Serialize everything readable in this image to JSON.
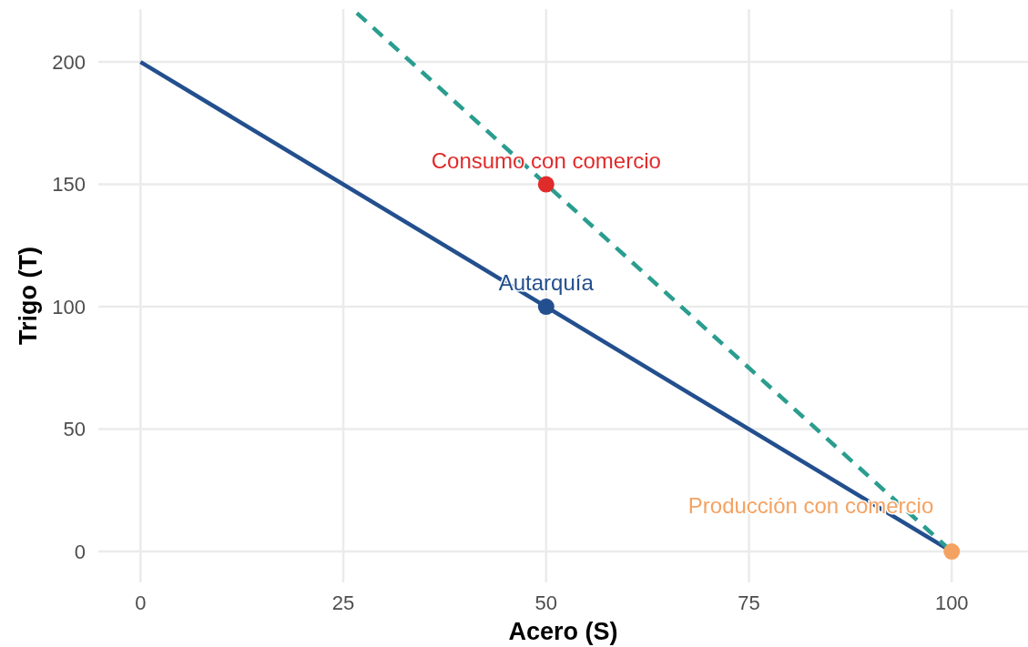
{
  "chart_data": {
    "type": "line",
    "xlabel": "Acero (S)",
    "ylabel": "Trigo (T)",
    "xlim": [
      -5.2,
      109.4
    ],
    "ylim": [
      -12.6,
      221.6
    ],
    "xticks": [
      0,
      25,
      50,
      75,
      100
    ],
    "yticks": [
      0,
      50,
      100,
      150,
      200
    ],
    "grid": true,
    "series": [
      {
        "color": "#234f8e",
        "x": [
          0,
          100
        ],
        "values": [
          200,
          0
        ],
        "line_style": "solid"
      },
      {
        "color": "#2a9d8f",
        "x": [
          26.67,
          100
        ],
        "values": [
          220,
          0
        ],
        "line_style": "dashed"
      },
      {
        "type": "scatter",
        "name": "Autarquía",
        "color": "#234f8e",
        "x": [
          50
        ],
        "values": [
          100
        ]
      },
      {
        "type": "scatter",
        "name": "Consumo con comercio",
        "color": "#e02b2b",
        "x": [
          50
        ],
        "values": [
          150
        ]
      },
      {
        "type": "scatter",
        "name": "Producción con comercio",
        "color": "#f4a261",
        "x": [
          100
        ],
        "values": [
          0
        ]
      }
    ]
  }
}
